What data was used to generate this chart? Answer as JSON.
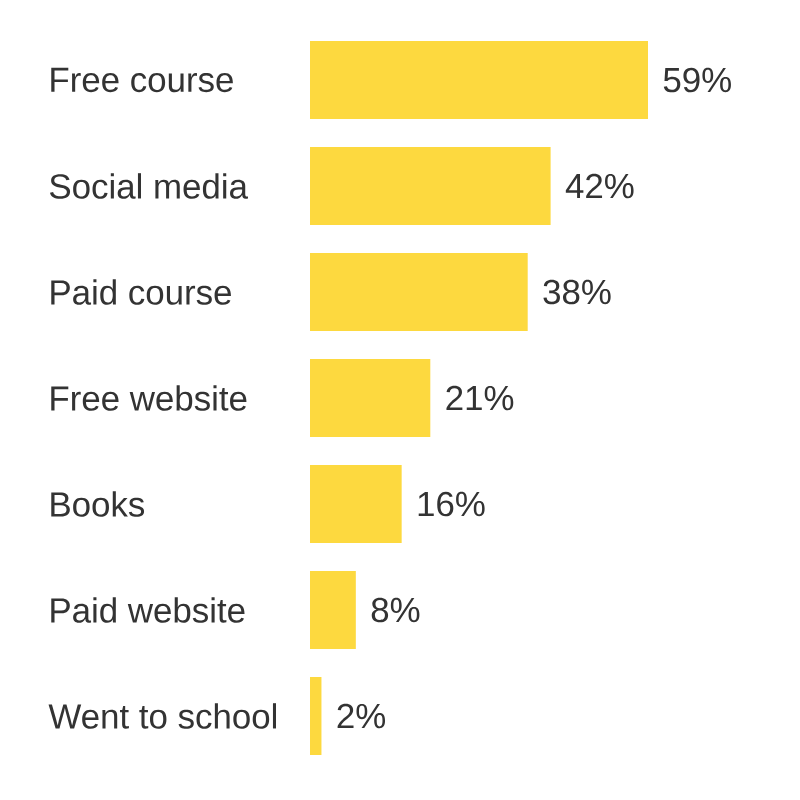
{
  "chart_data": {
    "type": "bar",
    "orientation": "horizontal",
    "categories": [
      "Free course",
      "Social media",
      "Paid course",
      "Free website",
      "Books",
      "Paid website",
      "Went to school"
    ],
    "values": [
      59,
      42,
      38,
      21,
      16,
      8,
      2
    ],
    "color": "#fdd93f",
    "value_labels": [
      "59%",
      "42%",
      "38%",
      "21%",
      "16%",
      "8%",
      "2%"
    ]
  }
}
